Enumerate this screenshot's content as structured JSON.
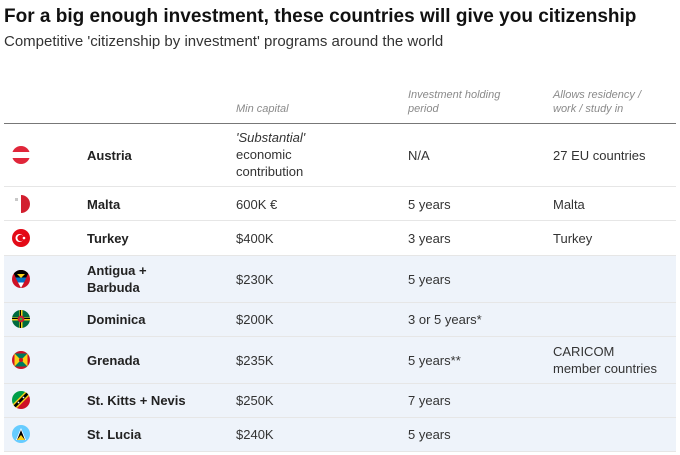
{
  "title": "For a big enough investment, these countries will give you citizenship",
  "subtitle": "Competitive 'citizenship by investment' programs around the world",
  "columns": {
    "country": "",
    "min_capital": "Min capital",
    "holding_line1": "Investment holding",
    "holding_line2": "period",
    "residency_line1": "Allows residency /",
    "residency_line2": "work / study in"
  },
  "rows": [
    {
      "country": "Austria",
      "flag_icon": "austria-flag-icon",
      "capital_lines": [
        "'Substantial'",
        "economic",
        "contribution"
      ],
      "holding": "N/A",
      "residency_lines": [
        "27 EU countries"
      ]
    },
    {
      "country": "Malta",
      "flag_icon": "malta-flag-icon",
      "capital_lines": [
        "600K €"
      ],
      "holding": "5 years",
      "residency_lines": [
        "Malta"
      ]
    },
    {
      "country": "Turkey",
      "flag_icon": "turkey-flag-icon",
      "capital_lines": [
        "$400K"
      ],
      "holding": "3 years",
      "residency_lines": [
        "Turkey"
      ]
    },
    {
      "country_lines": [
        "Antigua +",
        "Barbuda"
      ],
      "flag_icon": "antigua-barbuda-flag-icon",
      "capital_lines": [
        "$230K"
      ],
      "holding": "5 years",
      "residency_lines": []
    },
    {
      "country": "Dominica",
      "flag_icon": "dominica-flag-icon",
      "capital_lines": [
        "$200K"
      ],
      "holding": "3 or 5 years*",
      "residency_lines": []
    },
    {
      "country": "Grenada",
      "flag_icon": "grenada-flag-icon",
      "capital_lines": [
        "$235K"
      ],
      "holding": "5 years**",
      "residency_lines": [
        "CARICOM",
        "member countries"
      ]
    },
    {
      "country": "St. Kitts + Nevis",
      "flag_icon": "st-kitts-nevis-flag-icon",
      "capital_lines": [
        "$250K"
      ],
      "holding": "7 years",
      "residency_lines": []
    },
    {
      "country": "St. Lucia",
      "flag_icon": "st-lucia-flag-icon",
      "capital_lines": [
        "$240K"
      ],
      "holding": "5 years",
      "residency_lines": []
    }
  ],
  "colors": {
    "caribbean_row_shade": "#eef3fa",
    "header_text": "#8a8a8a"
  }
}
